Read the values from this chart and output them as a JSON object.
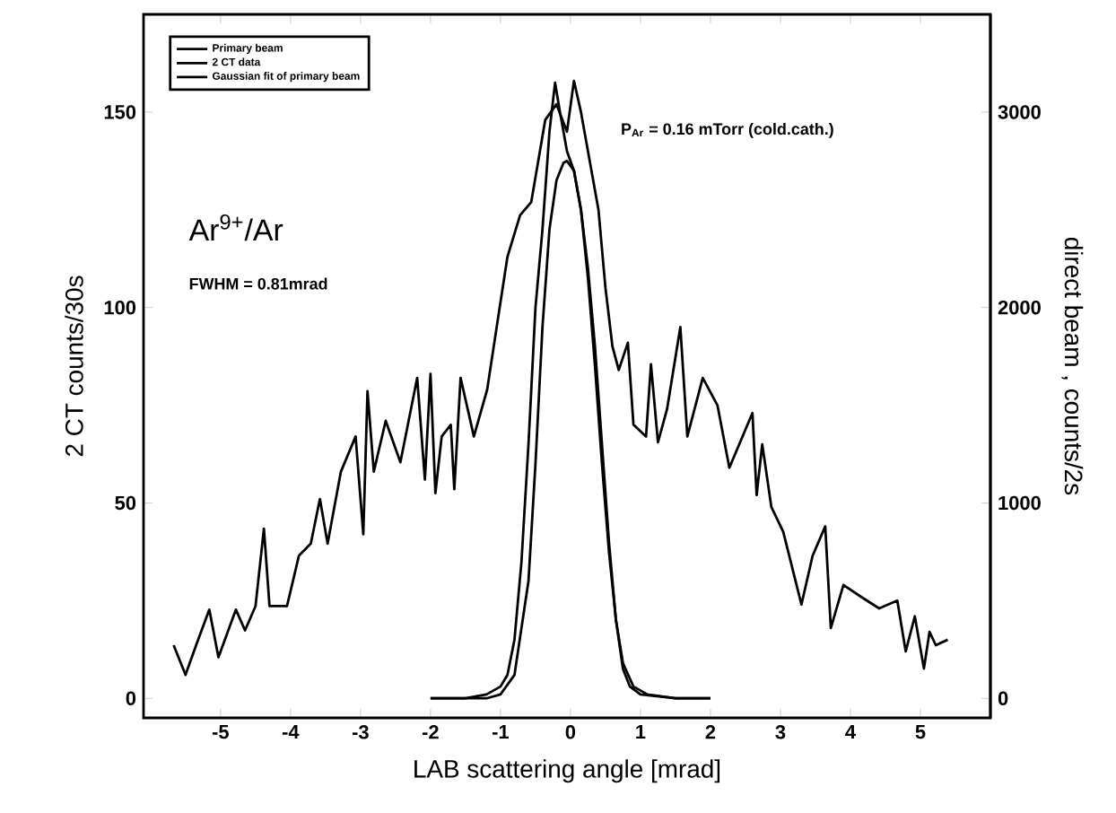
{
  "chart_data": {
    "type": "line",
    "xlabel": "LAB scattering angle [mrad]",
    "ylabel": "2 CT counts/30s",
    "y2label": "direct beam , counts/2s",
    "xlim": [
      -6.1,
      6.0
    ],
    "ylim": [
      -5,
      175
    ],
    "y2lim": [
      -100,
      3500
    ],
    "xticks": [
      -5,
      -4,
      -3,
      -2,
      -1,
      0,
      1,
      2,
      3,
      4,
      5
    ],
    "yticks": [
      0,
      50,
      100,
      150
    ],
    "y2ticks": [
      0,
      1000,
      2000,
      3000
    ],
    "legend": "top left",
    "annotations": [
      "Ar$^{9+}$/Ar",
      "FWHM = 0.81mrad",
      "P$_{Ar}$ = 0.16 mTorr (cold.cath.)"
    ],
    "series": [
      {
        "name": "Primary beam",
        "color": "#000000",
        "axis": "y2",
        "x": [
          -2.0,
          -1.5,
          -1.2,
          -1.0,
          -0.9,
          -0.8,
          -0.7,
          -0.6,
          -0.5,
          -0.4,
          -0.3,
          -0.22,
          -0.15,
          -0.05,
          0.05,
          0.15,
          0.25,
          0.35,
          0.45,
          0.55,
          0.65,
          0.75,
          0.85,
          1.0,
          1.5,
          2.0
        ],
        "values": [
          0,
          0,
          20,
          60,
          120,
          300,
          700,
          1300,
          2000,
          2400,
          2900,
          3150,
          3000,
          2800,
          2700,
          2500,
          2200,
          1800,
          1300,
          800,
          400,
          150,
          60,
          20,
          0,
          0
        ]
      },
      {
        "name": "2 CT data",
        "color": "#000000",
        "axis": "y",
        "x": [
          -5.67,
          -5.5,
          -5.33,
          -5.16,
          -5.03,
          -4.78,
          -4.65,
          -4.5,
          -4.38,
          -4.3,
          -4.05,
          -3.88,
          -3.71,
          -3.58,
          -3.47,
          -3.28,
          -3.07,
          -2.96,
          -2.9,
          -2.81,
          -2.64,
          -2.43,
          -2.19,
          -2.08,
          -2.0,
          -1.93,
          -1.84,
          -1.71,
          -1.66,
          -1.57,
          -1.38,
          -1.19,
          -1.02,
          -0.9,
          -0.72,
          -0.56,
          -0.36,
          -0.2,
          -0.05,
          0.05,
          0.15,
          0.3,
          0.4,
          0.5,
          0.6,
          0.69,
          0.82,
          0.9,
          1.08,
          1.15,
          1.25,
          1.38,
          1.57,
          1.67,
          1.89,
          2.1,
          2.27,
          2.6,
          2.66,
          2.74,
          2.87,
          3.04,
          3.3,
          3.46,
          3.64,
          3.72,
          3.9,
          4.15,
          4.41,
          4.67,
          4.79,
          4.92,
          5.05,
          5.13,
          5.22,
          5.39
        ],
        "values": [
          13.6,
          6,
          14.5,
          22.7,
          10.5,
          22.7,
          17.4,
          23.6,
          43.4,
          23.6,
          23.6,
          36.5,
          39.6,
          51,
          39.6,
          58,
          67,
          42,
          78.6,
          58,
          71,
          60.4,
          82,
          56,
          83,
          52.5,
          67,
          70,
          53.5,
          82,
          67,
          79,
          99,
          113,
          123.6,
          127,
          148,
          152,
          145,
          158,
          150,
          135,
          125,
          105,
          90,
          84,
          91,
          70,
          67,
          85.5,
          65.5,
          74,
          95,
          67,
          82,
          75,
          59,
          73,
          52,
          65,
          49,
          42.6,
          24,
          36.5,
          44,
          18,
          29,
          26,
          23,
          25,
          12,
          21,
          7.6,
          17,
          13.6,
          15
        ]
      },
      {
        "name": "Gaussian fit of primary beam",
        "color": "#000000",
        "axis": "y2",
        "x": [
          -2.0,
          -1.2,
          -1.0,
          -0.8,
          -0.6,
          -0.5,
          -0.4,
          -0.3,
          -0.2,
          -0.1,
          -0.05,
          0.05,
          0.15,
          0.25,
          0.35,
          0.45,
          0.55,
          0.65,
          0.75,
          0.9,
          1.1,
          1.5,
          2.0
        ],
        "values": [
          0,
          0,
          20,
          120,
          600,
          1200,
          1900,
          2400,
          2650,
          2740,
          2750,
          2700,
          2500,
          2150,
          1700,
          1200,
          750,
          400,
          180,
          60,
          20,
          0,
          0
        ]
      }
    ]
  }
}
